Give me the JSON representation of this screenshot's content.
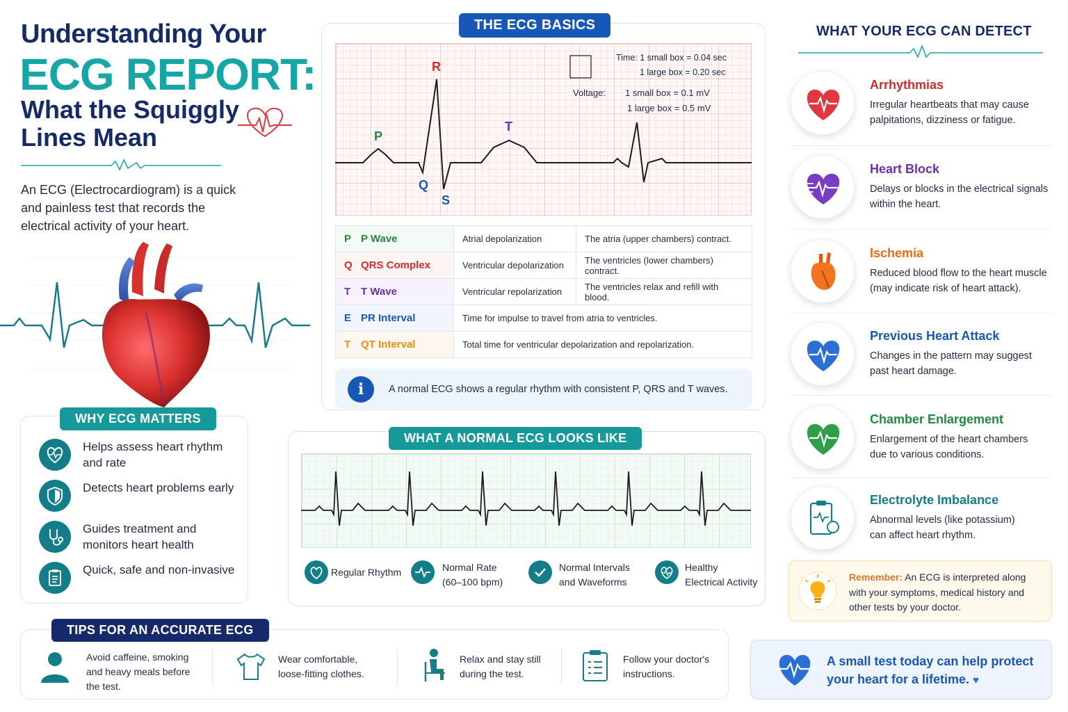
{
  "header": {
    "title_line1": "Understanding Your",
    "title_line2": "ECG REPORT:",
    "title_line3": "What the Squiggly Lines Mean",
    "intro": "An ECG (Electrocardiogram) is a quick and painless test that records the electrical activity of your heart."
  },
  "why": {
    "heading": "WHY ECG MATTERS",
    "items": [
      {
        "text": "Helps assess heart rhythm and rate",
        "icon": "heart-rate-icon"
      },
      {
        "text": "Detects heart problems early",
        "icon": "shield-icon"
      },
      {
        "text": "Guides treatment and monitors heart health",
        "icon": "stethoscope-icon"
      },
      {
        "text": "Quick, safe and non-invasive",
        "icon": "clipboard-icon"
      }
    ]
  },
  "basics": {
    "heading": "THE ECG BASICS",
    "labels": {
      "p": "P",
      "q": "Q",
      "r": "R",
      "s": "S",
      "t": "T"
    },
    "scale": {
      "time_label": "Time:",
      "time_small": "1 small box = 0.04 sec",
      "time_large": "1 large box = 0.20 sec",
      "voltage_label": "Voltage:",
      "voltage_small": "1 small box = 0.1 mV",
      "voltage_large": "1 large box = 0.5 mV"
    },
    "rows": [
      {
        "letter": "P",
        "name": "P Wave",
        "desc": "Atrial depolarization",
        "detail": "The atria (upper chambers) contract.",
        "color": "#1e8a3c"
      },
      {
        "letter": "Q",
        "name": "QRS Complex",
        "desc": "Ventricular depolarization",
        "detail": "The ventricles (lower chambers) contract.",
        "color": "#d62b2b"
      },
      {
        "letter": "T",
        "name": "T Wave",
        "desc": "Ventricular repolarization",
        "detail": "The ventricles relax and refill with blood.",
        "color": "#6a2fb0"
      },
      {
        "letter": "E",
        "name": "PR Interval",
        "desc": "Time for impulse to travel from atria to ventricles.",
        "color": "#1757b8"
      },
      {
        "letter": "T",
        "name": "QT Interval",
        "desc": "Total time for ventricular depolarization and repolarization.",
        "color": "#f08a12"
      }
    ],
    "note": "A normal ECG shows a regular rhythm with consistent P, QRS and T waves."
  },
  "normal": {
    "heading": "WHAT A NORMAL ECG LOOKS LIKE",
    "features": [
      {
        "text": "Regular Rhythm",
        "icon": "heart-icon"
      },
      {
        "text": "Normal Rate (60–100 bpm)",
        "line1": "Normal Rate",
        "line2": "(60–100 bpm)",
        "icon": "pulse-icon"
      },
      {
        "line1": "Normal Intervals",
        "line2": "and Waveforms",
        "icon": "check-icon"
      },
      {
        "line1": "Healthy",
        "line2": "Electrical Activity",
        "icon": "heart-pulse-icon"
      }
    ]
  },
  "tips": {
    "heading": "TIPS FOR AN ACCURATE ECG",
    "items": [
      {
        "line1": "Avoid caffeine, smoking",
        "line2": "and heavy meals before",
        "line3": "the test.",
        "icon": "person-icon"
      },
      {
        "line1": "Wear comfortable,",
        "line2": "loose-fitting clothes.",
        "icon": "tshirt-icon"
      },
      {
        "line1": "Relax and stay still",
        "line2": "during the test.",
        "icon": "sitting-person-icon"
      },
      {
        "line1": "Follow your doctor's",
        "line2": "instructions.",
        "icon": "checklist-icon"
      }
    ]
  },
  "detect": {
    "heading": "WHAT YOUR ECG CAN DETECT",
    "items": [
      {
        "title": "Arrhythmias",
        "line1": "Irregular heartbeats that may cause",
        "line2": "palpitations, dizziness or fatigue.",
        "color": "#d62b2b"
      },
      {
        "title": "Heart Block",
        "line1": "Delays or blocks in the electrical signals",
        "line2": "within the heart.",
        "color": "#6a2fb0"
      },
      {
        "title": "Ischemia",
        "line1": "Reduced blood flow to the heart muscle",
        "line2": "(may indicate risk of heart attack).",
        "color": "#f06a12"
      },
      {
        "title": "Previous Heart Attack",
        "line1": "Changes in the pattern may suggest",
        "line2": "past heart damage.",
        "color": "#1757b8"
      },
      {
        "title": "Chamber Enlargement",
        "line1": "Enlargement of the heart chambers",
        "line2": "due to various conditions.",
        "color": "#1e8a3c"
      },
      {
        "title": "Electrolyte Imbalance",
        "line1": "Abnormal levels (like potassium)",
        "line2": "can affect heart rhythm.",
        "color": "#137d8a"
      }
    ],
    "remember_label": "Remember:",
    "remember_text": " An ECG is interpreted along with your symptoms, medical history and other tests by your doctor."
  },
  "closing": {
    "line1": "A small test today can help protect",
    "line2": "your heart for a lifetime."
  }
}
